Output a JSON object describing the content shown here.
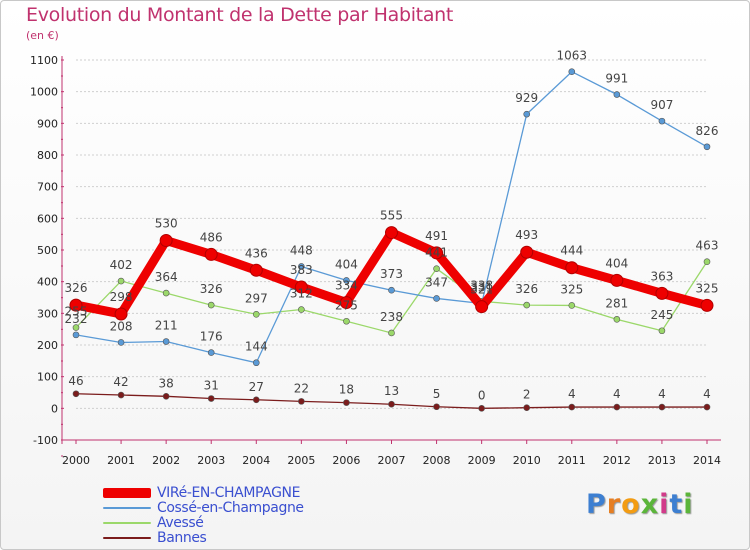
{
  "title": "Evolution du Montant de la Dette par Habitant",
  "subtitle": "(en €)",
  "logo": "Proxiti",
  "colors": {
    "title": "#c0326e",
    "legend_text": "#3a4fd0"
  },
  "chart_data": {
    "type": "line",
    "x": [
      "2000",
      "2001",
      "2002",
      "2003",
      "2004",
      "2005",
      "2006",
      "2007",
      "2008",
      "2009",
      "2010",
      "2011",
      "2012",
      "2013",
      "2014"
    ],
    "ylim": [
      -100,
      1100
    ],
    "yticks": [
      -100,
      0,
      100,
      200,
      300,
      400,
      500,
      600,
      700,
      800,
      900,
      1000,
      1100
    ],
    "grid": true,
    "legend_position": "bottom-left",
    "series": [
      {
        "name": "Bannes",
        "color": "#7b1c1c",
        "values": [
          46,
          42,
          38,
          31,
          27,
          22,
          18,
          13,
          5,
          0,
          2,
          4,
          4,
          4,
          4
        ]
      },
      {
        "name": "Avessé",
        "color": "#9bd86a",
        "values": [
          255,
          402,
          364,
          326,
          297,
          312,
          275,
          238,
          441,
          338,
          326,
          325,
          281,
          245,
          463
        ]
      },
      {
        "name": "Cossé-en-Champagne",
        "color": "#5a9ad6",
        "values": [
          232,
          208,
          211,
          176,
          144,
          448,
          404,
          373,
          347,
          331,
          929,
          1063,
          991,
          907,
          826
        ]
      },
      {
        "name": "VIRé-EN-CHAMPAGNE",
        "color": "#ee0000",
        "values": [
          326,
          298,
          530,
          486,
          436,
          383,
          334,
          555,
          491,
          321,
          493,
          444,
          404,
          363,
          325
        ]
      }
    ],
    "legend": [
      "VIRé-EN-CHAMPAGNE",
      "Cossé-en-Champagne",
      "Avessé",
      "Bannes"
    ]
  }
}
